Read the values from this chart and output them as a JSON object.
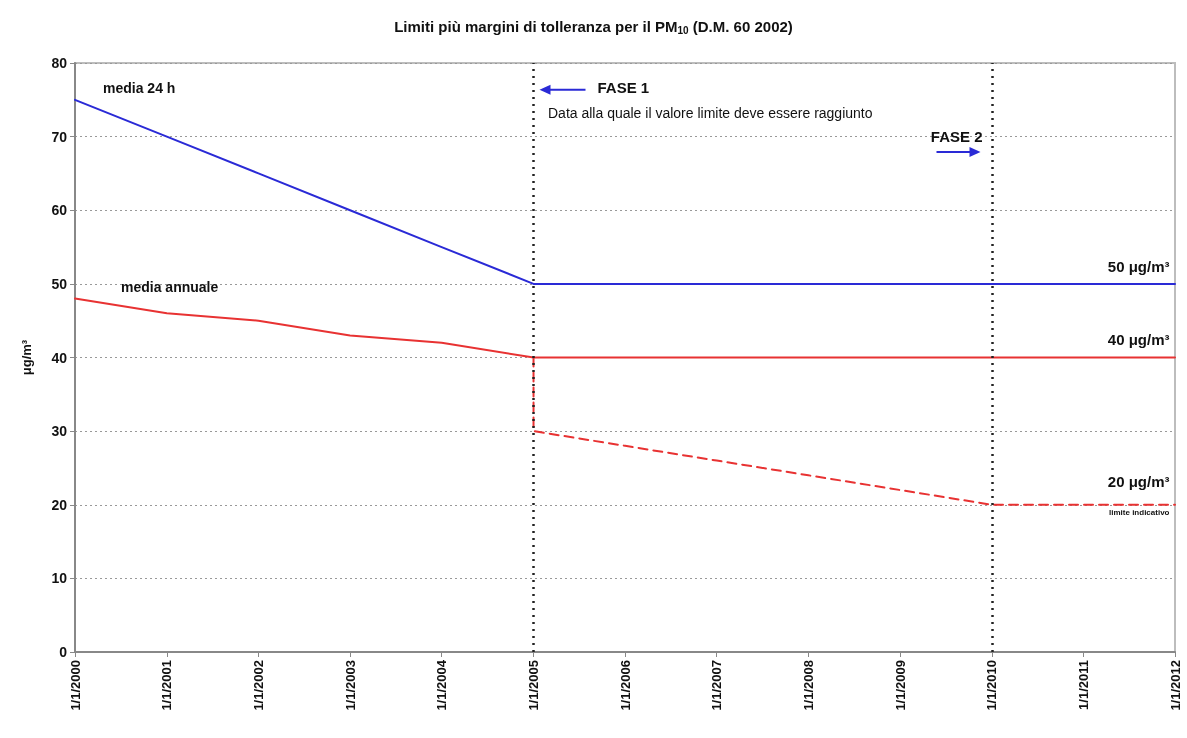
{
  "chart_data": {
    "type": "line",
    "title": "Limiti più margini di tolleranza per il PM$_{10}$ (D.M. 60 2002)",
    "ylabel": "μg/m³",
    "xlim": [
      "2000-01-01",
      "2012-01-01"
    ],
    "xticks": [
      {
        "value": "2000-01-01",
        "label": "1/1/2000"
      },
      {
        "value": "2001-01-01",
        "label": "1/1/2001"
      },
      {
        "value": "2002-01-01",
        "label": "1/1/2002"
      },
      {
        "value": "2003-01-01",
        "label": "1/1/2003"
      },
      {
        "value": "2004-01-01",
        "label": "1/1/2004"
      },
      {
        "value": "2005-01-01",
        "label": "1/1/2005"
      },
      {
        "value": "2006-01-01",
        "label": "1/1/2006"
      },
      {
        "value": "2007-01-01",
        "label": "1/1/2007"
      },
      {
        "value": "2008-01-01",
        "label": "1/1/2008"
      },
      {
        "value": "2009-01-01",
        "label": "1/1/2009"
      },
      {
        "value": "2010-01-01",
        "label": "1/1/2010"
      },
      {
        "value": "2011-01-01",
        "label": "1/1/2011"
      },
      {
        "value": "2012-01-01",
        "label": "1/1/2012"
      }
    ],
    "ylim": [
      0,
      80
    ],
    "yticks": [
      0,
      10,
      20,
      30,
      40,
      50,
      60,
      70,
      80
    ],
    "series": [
      {
        "name": "media 24 h",
        "color": "#2a2ad6",
        "x": [
          "2000-01-01",
          "2001-01-01",
          "2002-01-01",
          "2003-01-01",
          "2004-01-01",
          "2005-01-01",
          "2006-01-01",
          "2007-01-01",
          "2008-01-01",
          "2009-01-01",
          "2010-01-01",
          "2011-01-01",
          "2012-01-01"
        ],
        "values": [
          75,
          70,
          65,
          60,
          55,
          50,
          50,
          50,
          50,
          50,
          50,
          50,
          50
        ]
      },
      {
        "name": "media annuale",
        "color": "#e83232",
        "x": [
          "2000-01-01",
          "2001-01-01",
          "2002-01-01",
          "2003-01-01",
          "2004-01-01",
          "2005-01-01",
          "2006-01-01",
          "2007-01-01",
          "2008-01-01",
          "2009-01-01",
          "2010-01-01",
          "2011-01-01",
          "2012-01-01"
        ],
        "values": [
          48,
          46,
          45,
          43,
          42,
          40,
          40,
          40,
          40,
          40,
          40,
          40,
          40
        ]
      },
      {
        "color": "#e83232",
        "line_style": "dashed",
        "x": [
          "2005-01-01",
          "2005-01-01",
          "2006-01-01",
          "2007-01-01",
          "2008-01-01",
          "2009-01-01",
          "2010-01-01",
          "2011-01-01",
          "2012-01-01"
        ],
        "values": [
          40,
          30,
          28,
          26,
          24,
          22,
          20,
          20,
          20
        ]
      }
    ],
    "ref_lines": [
      {
        "axis": "x",
        "value": "2005-01-01",
        "color": "#222222",
        "line_style": "dotted"
      },
      {
        "axis": "x",
        "value": "2010-01-01",
        "color": "#222222",
        "line_style": "dotted"
      }
    ],
    "annotations": [
      "FASE 1",
      "Data alla quale il valore limite deve essere raggiunto",
      "FASE 2",
      "50 μg/m³",
      "40 μg/m³",
      "20 μg/m³",
      "limite indicativo"
    ],
    "grid": "y",
    "marker": "none"
  }
}
